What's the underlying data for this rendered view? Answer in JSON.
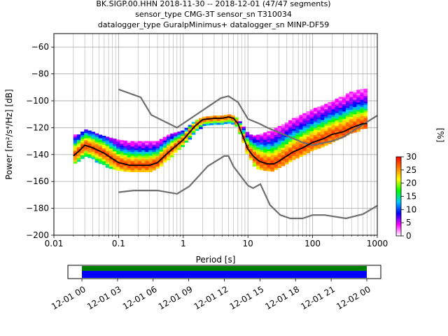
{
  "chart_data": {
    "type": "heatmap",
    "title_lines": [
      "BK.SIGP.00.HHN   2018-11-30 -- 2018-12-01  (47/47 segments)",
      "sensor_type CMG-3T sensor_sn T310034",
      "datalogger_type GuralpMinimus+ datalogger_sn MINP-DF59"
    ],
    "xlabel": "Period [s]",
    "ylabel": "Power [m²/s⁴/Hz] [dB]",
    "xscale": "log",
    "xlim": [
      0.01,
      1000
    ],
    "ylim": [
      -200,
      -50
    ],
    "grid": true,
    "xticks": [
      {
        "value": 0.01,
        "label": "0.01"
      },
      {
        "value": 0.1,
        "label": "0.1"
      },
      {
        "value": 1,
        "label": "1"
      },
      {
        "value": 10,
        "label": "10"
      },
      {
        "value": 100,
        "label": "100"
      },
      {
        "value": 1000,
        "label": "1000"
      }
    ],
    "yticks": [
      {
        "value": -60,
        "label": "−60"
      },
      {
        "value": -80,
        "label": "−80"
      },
      {
        "value": -100,
        "label": "−100"
      },
      {
        "value": -120,
        "label": "−120"
      },
      {
        "value": -140,
        "label": "−140"
      },
      {
        "value": -160,
        "label": "−160"
      },
      {
        "value": -180,
        "label": "−180"
      },
      {
        "value": -200,
        "label": "−200"
      }
    ],
    "colorbar": {
      "label": "[%]",
      "range": [
        0,
        30
      ],
      "ticks": [
        "0",
        "5",
        "10",
        "15",
        "20",
        "25",
        "30"
      ],
      "colors": [
        "#ffffff",
        "#ff00ff",
        "#0000ff",
        "#00c8ff",
        "#00ff00",
        "#ffff00",
        "#ff8000",
        "#ff0000"
      ]
    },
    "mode_curve": {
      "color": "#000000",
      "points": [
        [
          0.02,
          -141
        ],
        [
          0.025,
          -137
        ],
        [
          0.03,
          -133
        ],
        [
          0.04,
          -135
        ],
        [
          0.06,
          -139
        ],
        [
          0.08,
          -143
        ],
        [
          0.1,
          -146
        ],
        [
          0.15,
          -148
        ],
        [
          0.2,
          -148
        ],
        [
          0.3,
          -148
        ],
        [
          0.4,
          -146
        ],
        [
          0.6,
          -138
        ],
        [
          1,
          -129
        ],
        [
          1.5,
          -119
        ],
        [
          2,
          -114
        ],
        [
          3,
          -113
        ],
        [
          4,
          -113
        ],
        [
          5,
          -112
        ],
        [
          6,
          -113
        ],
        [
          7,
          -117
        ],
        [
          8,
          -124
        ],
        [
          10,
          -136
        ],
        [
          12,
          -141
        ],
        [
          15,
          -145
        ],
        [
          20,
          -147
        ],
        [
          25,
          -147
        ],
        [
          30,
          -145
        ],
        [
          40,
          -141
        ],
        [
          50,
          -138
        ],
        [
          70,
          -135
        ],
        [
          100,
          -131
        ],
        [
          150,
          -128
        ],
        [
          200,
          -125
        ],
        [
          300,
          -123
        ],
        [
          400,
          -120
        ],
        [
          600,
          -117
        ],
        [
          700,
          -117
        ]
      ]
    },
    "nhnm": {
      "color": "#6e6e6e",
      "points": [
        [
          0.1,
          -91.5
        ],
        [
          0.22,
          -97.4
        ],
        [
          0.32,
          -110.5
        ],
        [
          0.8,
          -120
        ],
        [
          3.8,
          -98
        ],
        [
          5,
          -96.5
        ],
        [
          7,
          -101
        ],
        [
          10,
          -113.5
        ],
        [
          15,
          -117
        ],
        [
          20,
          -120
        ],
        [
          25,
          -122
        ],
        [
          40,
          -126
        ],
        [
          70,
          -131
        ],
        [
          100,
          -133
        ],
        [
          200,
          -130
        ],
        [
          300,
          -127
        ],
        [
          500,
          -120
        ],
        [
          1000,
          -111
        ]
      ]
    },
    "nlnm": {
      "color": "#6e6e6e",
      "points": [
        [
          0.1,
          -168
        ],
        [
          0.17,
          -166.7
        ],
        [
          0.4,
          -166.7
        ],
        [
          0.8,
          -169.2
        ],
        [
          1.24,
          -163.7
        ],
        [
          2.4,
          -148.6
        ],
        [
          4.3,
          -141.1
        ],
        [
          5,
          -141.1
        ],
        [
          6,
          -149
        ],
        [
          10,
          -163
        ],
        [
          12,
          -165
        ],
        [
          15.6,
          -162
        ],
        [
          21.9,
          -177.5
        ],
        [
          31.6,
          -185
        ],
        [
          45,
          -187.5
        ],
        [
          70,
          -187.5
        ],
        [
          100,
          -185
        ],
        [
          154,
          -185
        ],
        [
          328,
          -187.5
        ],
        [
          600,
          -184.4
        ],
        [
          1000,
          -178
        ]
      ]
    },
    "density_envelope": {
      "periods": [
        0.02,
        0.025,
        0.03,
        0.04,
        0.05,
        0.07,
        0.1,
        0.15,
        0.2,
        0.3,
        0.4,
        0.6,
        1,
        1.5,
        2,
        3,
        4,
        5,
        6,
        7,
        8,
        10,
        12,
        15,
        20,
        25,
        30,
        40,
        50,
        70,
        100,
        150,
        200,
        300,
        400,
        600,
        700
      ],
      "upper": [
        -125,
        -125,
        -121,
        -123,
        -125,
        -127,
        -129,
        -130,
        -130,
        -130,
        -130,
        -125,
        -122,
        -115,
        -112,
        -111,
        -111,
        -110,
        -111,
        -113,
        -117,
        -124,
        -126,
        -125,
        -123,
        -121,
        -119,
        -116,
        -113,
        -110,
        -106,
        -103,
        -100,
        -96,
        -93,
        -91,
        -91
      ],
      "lower": [
        -146,
        -144,
        -141,
        -143,
        -146,
        -149,
        -151,
        -152,
        -152,
        -152,
        -150,
        -143,
        -133,
        -124,
        -118,
        -117,
        -117,
        -116,
        -117,
        -120,
        -127,
        -140,
        -147,
        -151,
        -152,
        -152,
        -150,
        -146,
        -143,
        -140,
        -136,
        -133,
        -130,
        -127,
        -124,
        -120,
        -120
      ]
    },
    "time_axis": {
      "labels": [
        "12-01 00",
        "12-01 03",
        "12-01 06",
        "12-01 09",
        "12-01 12",
        "12-01 15",
        "12-01 18",
        "12-01 21",
        "12-02 00"
      ],
      "bar_colors": [
        "#008000",
        "#0000ff"
      ]
    }
  }
}
